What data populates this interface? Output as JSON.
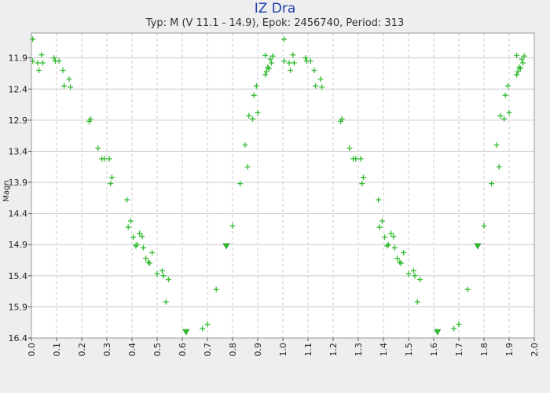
{
  "chart_data": {
    "type": "scatter",
    "title": "IZ Dra",
    "subtitle": "Typ: M (V 11.1 - 14.9), Epok: 2456740, Period: 313",
    "xlabel": "",
    "ylabel": "Magn",
    "xlim": [
      0.0,
      2.0
    ],
    "ylim": [
      11.5,
      16.4
    ],
    "y_inverted": true,
    "grid": true,
    "x_ticks": [
      "0.0",
      "0.1",
      "0.2",
      "0.3",
      "0.4",
      "0.5",
      "0.6",
      "0.7",
      "0.8",
      "0.9",
      "1.0",
      "1.1",
      "1.2",
      "1.3",
      "1.4",
      "1.5",
      "1.6",
      "1.7",
      "1.8",
      "1.9",
      "2.0"
    ],
    "y_ticks": [
      "11.9",
      "12.4",
      "12.9",
      "13.4",
      "13.9",
      "14.4",
      "14.9",
      "15.4",
      "15.9",
      "16.4"
    ],
    "colors": {
      "points": "#33bb33",
      "grid": "#cccccc",
      "plot_bg": "#ffffff",
      "title": "#1f3fb0"
    },
    "series": [
      {
        "marker": "plus",
        "points": [
          [
            0.005,
            11.6
          ],
          [
            0.005,
            11.95
          ],
          [
            0.025,
            11.98
          ],
          [
            0.03,
            12.1
          ],
          [
            0.04,
            11.85
          ],
          [
            0.045,
            11.98
          ],
          [
            0.09,
            11.9
          ],
          [
            0.095,
            11.95
          ],
          [
            0.11,
            11.95
          ],
          [
            0.125,
            12.1
          ],
          [
            0.13,
            12.35
          ],
          [
            0.15,
            12.24
          ],
          [
            0.155,
            12.37
          ],
          [
            0.23,
            12.92
          ],
          [
            0.235,
            12.88
          ],
          [
            0.265,
            13.35
          ],
          [
            0.28,
            13.52
          ],
          [
            0.29,
            13.52
          ],
          [
            0.31,
            13.52
          ],
          [
            0.315,
            13.92
          ],
          [
            0.32,
            13.82
          ],
          [
            0.38,
            14.18
          ],
          [
            0.385,
            14.62
          ],
          [
            0.395,
            14.52
          ],
          [
            0.405,
            14.78
          ],
          [
            0.415,
            14.92
          ],
          [
            0.42,
            14.9
          ],
          [
            0.43,
            14.72
          ],
          [
            0.44,
            14.77
          ],
          [
            0.445,
            14.95
          ],
          [
            0.455,
            15.12
          ],
          [
            0.465,
            15.18
          ],
          [
            0.47,
            15.2
          ],
          [
            0.48,
            15.03
          ],
          [
            0.5,
            15.37
          ],
          [
            0.52,
            15.32
          ],
          [
            0.525,
            15.4
          ],
          [
            0.535,
            15.82
          ],
          [
            0.545,
            15.46
          ],
          [
            0.68,
            16.25
          ],
          [
            0.7,
            16.18
          ],
          [
            0.735,
            15.62
          ],
          [
            0.8,
            14.6
          ],
          [
            0.83,
            13.92
          ],
          [
            0.85,
            13.3
          ],
          [
            0.86,
            13.65
          ],
          [
            0.865,
            12.83
          ],
          [
            0.88,
            12.88
          ],
          [
            0.885,
            12.5
          ],
          [
            0.895,
            12.35
          ],
          [
            0.9,
            12.78
          ],
          [
            0.93,
            12.17
          ],
          [
            0.93,
            11.86
          ],
          [
            0.935,
            12.12
          ],
          [
            0.94,
            12.05
          ],
          [
            0.945,
            12.07
          ],
          [
            0.95,
            11.92
          ],
          [
            0.955,
            11.98
          ],
          [
            0.96,
            11.87
          ],
          [
            1.005,
            11.6
          ],
          [
            1.005,
            11.95
          ],
          [
            1.025,
            11.98
          ],
          [
            1.03,
            12.1
          ],
          [
            1.04,
            11.85
          ],
          [
            1.045,
            11.98
          ],
          [
            1.09,
            11.9
          ],
          [
            1.095,
            11.95
          ],
          [
            1.11,
            11.95
          ],
          [
            1.125,
            12.1
          ],
          [
            1.13,
            12.35
          ],
          [
            1.15,
            12.24
          ],
          [
            1.155,
            12.37
          ],
          [
            1.23,
            12.92
          ],
          [
            1.235,
            12.88
          ],
          [
            1.265,
            13.35
          ],
          [
            1.28,
            13.52
          ],
          [
            1.29,
            13.52
          ],
          [
            1.31,
            13.52
          ],
          [
            1.315,
            13.92
          ],
          [
            1.32,
            13.82
          ],
          [
            1.38,
            14.18
          ],
          [
            1.385,
            14.62
          ],
          [
            1.395,
            14.52
          ],
          [
            1.405,
            14.78
          ],
          [
            1.415,
            14.92
          ],
          [
            1.42,
            14.9
          ],
          [
            1.43,
            14.72
          ],
          [
            1.44,
            14.77
          ],
          [
            1.445,
            14.95
          ],
          [
            1.455,
            15.12
          ],
          [
            1.465,
            15.18
          ],
          [
            1.47,
            15.2
          ],
          [
            1.48,
            15.03
          ],
          [
            1.5,
            15.37
          ],
          [
            1.52,
            15.32
          ],
          [
            1.525,
            15.4
          ],
          [
            1.535,
            15.82
          ],
          [
            1.545,
            15.46
          ],
          [
            1.68,
            16.25
          ],
          [
            1.7,
            16.18
          ],
          [
            1.735,
            15.62
          ],
          [
            1.8,
            14.6
          ],
          [
            1.83,
            13.92
          ],
          [
            1.85,
            13.3
          ],
          [
            1.86,
            13.65
          ],
          [
            1.865,
            12.83
          ],
          [
            1.88,
            12.88
          ],
          [
            1.885,
            12.5
          ],
          [
            1.895,
            12.35
          ],
          [
            1.9,
            12.78
          ],
          [
            1.93,
            12.17
          ],
          [
            1.93,
            11.86
          ],
          [
            1.935,
            12.12
          ],
          [
            1.94,
            12.05
          ],
          [
            1.945,
            12.07
          ],
          [
            1.95,
            11.92
          ],
          [
            1.955,
            11.98
          ],
          [
            1.96,
            11.87
          ]
        ]
      },
      {
        "marker": "triangle-down",
        "points": [
          [
            0.615,
            16.3
          ],
          [
            0.775,
            14.92
          ],
          [
            1.615,
            16.3
          ],
          [
            1.775,
            14.92
          ]
        ]
      }
    ]
  }
}
